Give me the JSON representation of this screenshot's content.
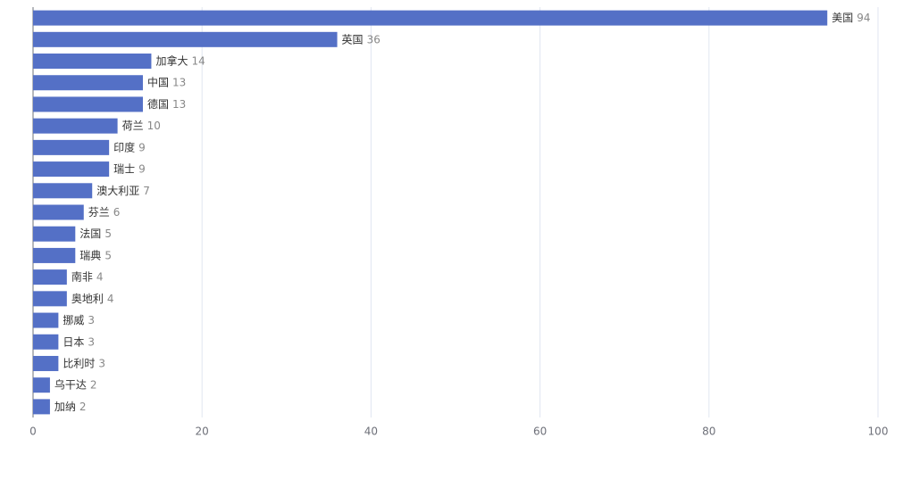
{
  "chart_data": {
    "type": "bar",
    "orientation": "horizontal",
    "categories": [
      "美国",
      "英国",
      "加拿大",
      "中国",
      "德国",
      "荷兰",
      "印度",
      "瑞士",
      "澳大利亚",
      "芬兰",
      "法国",
      "瑞典",
      "南非",
      "奥地利",
      "挪威",
      "日本",
      "比利时",
      "乌干达",
      "加纳"
    ],
    "values": [
      94,
      36,
      14,
      13,
      13,
      10,
      9,
      9,
      7,
      6,
      5,
      5,
      4,
      4,
      3,
      3,
      3,
      2,
      2
    ],
    "color": "#5470c6",
    "xlim": [
      0,
      100
    ],
    "xticks": [
      0,
      20,
      40,
      60,
      80,
      100
    ],
    "grid": true
  }
}
